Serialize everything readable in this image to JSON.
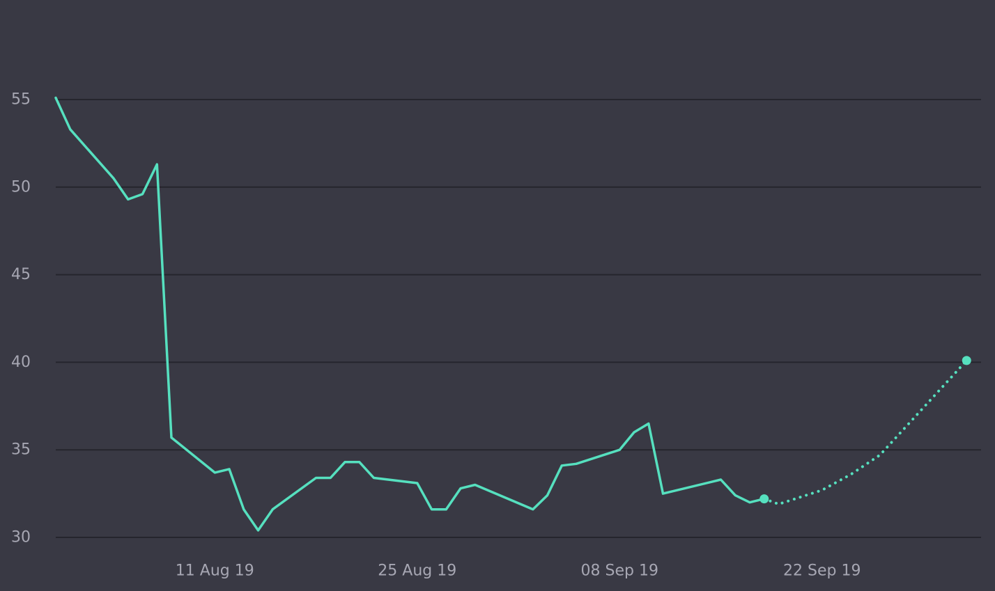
{
  "chart_data": {
    "type": "line",
    "title": "",
    "xlabel": "",
    "ylabel": "",
    "ylim": [
      30,
      55
    ],
    "xlim": [
      "2019-07-31",
      "2019-10-03"
    ],
    "grid": true,
    "y_ticks": [
      {
        "value": 30,
        "label": "30"
      },
      {
        "value": 35,
        "label": "35"
      },
      {
        "value": 40,
        "label": "40"
      },
      {
        "value": 45,
        "label": "45"
      },
      {
        "value": 50,
        "label": "50"
      },
      {
        "value": 55,
        "label": "55"
      }
    ],
    "x_ticks": [
      {
        "value": "2019-08-11",
        "label": "11 Aug 19"
      },
      {
        "value": "2019-08-25",
        "label": "25 Aug 19"
      },
      {
        "value": "2019-09-08",
        "label": "08 Sep 19"
      },
      {
        "value": "2019-09-22",
        "label": "22 Sep 19"
      }
    ],
    "series": [
      {
        "style": "solid",
        "color": "#56e0bf",
        "points": [
          [
            "2019-07-31",
            55.1
          ],
          [
            "2019-08-01",
            53.3
          ],
          [
            "2019-08-04",
            50.5
          ],
          [
            "2019-08-05",
            49.3
          ],
          [
            "2019-08-06",
            49.6
          ],
          [
            "2019-08-07",
            51.3
          ],
          [
            "2019-08-08",
            35.7
          ],
          [
            "2019-08-11",
            33.7
          ],
          [
            "2019-08-12",
            33.9
          ],
          [
            "2019-08-13",
            31.6
          ],
          [
            "2019-08-14",
            30.4
          ],
          [
            "2019-08-15",
            31.6
          ],
          [
            "2019-08-18",
            33.4
          ],
          [
            "2019-08-19",
            33.4
          ],
          [
            "2019-08-20",
            34.3
          ],
          [
            "2019-08-21",
            34.3
          ],
          [
            "2019-08-22",
            33.4
          ],
          [
            "2019-08-25",
            33.1
          ],
          [
            "2019-08-26",
            31.6
          ],
          [
            "2019-08-27",
            31.6
          ],
          [
            "2019-08-28",
            32.8
          ],
          [
            "2019-08-29",
            33.0
          ],
          [
            "2019-09-02",
            31.6
          ],
          [
            "2019-09-03",
            32.4
          ],
          [
            "2019-09-04",
            34.1
          ],
          [
            "2019-09-05",
            34.2
          ],
          [
            "2019-09-08",
            35.0
          ],
          [
            "2019-09-09",
            36.0
          ],
          [
            "2019-09-10",
            36.5
          ],
          [
            "2019-09-11",
            32.5
          ],
          [
            "2019-09-12",
            32.7
          ],
          [
            "2019-09-15",
            33.3
          ],
          [
            "2019-09-16",
            32.4
          ],
          [
            "2019-09-17",
            32.0
          ],
          [
            "2019-09-18",
            32.2
          ]
        ]
      },
      {
        "style": "dotted",
        "color": "#56e0bf",
        "points": [
          [
            "2019-09-18",
            32.2
          ],
          [
            "2019-09-19",
            31.9
          ],
          [
            "2019-09-22",
            32.7
          ],
          [
            "2019-09-24",
            33.6
          ],
          [
            "2019-09-26",
            34.7
          ],
          [
            "2019-09-28",
            36.5
          ],
          [
            "2019-09-30",
            38.3
          ],
          [
            "2019-10-02",
            40.1
          ]
        ]
      }
    ],
    "markers": [
      {
        "x": "2019-09-18",
        "y": 32.2
      },
      {
        "x": "2019-10-02",
        "y": 40.1
      }
    ]
  }
}
